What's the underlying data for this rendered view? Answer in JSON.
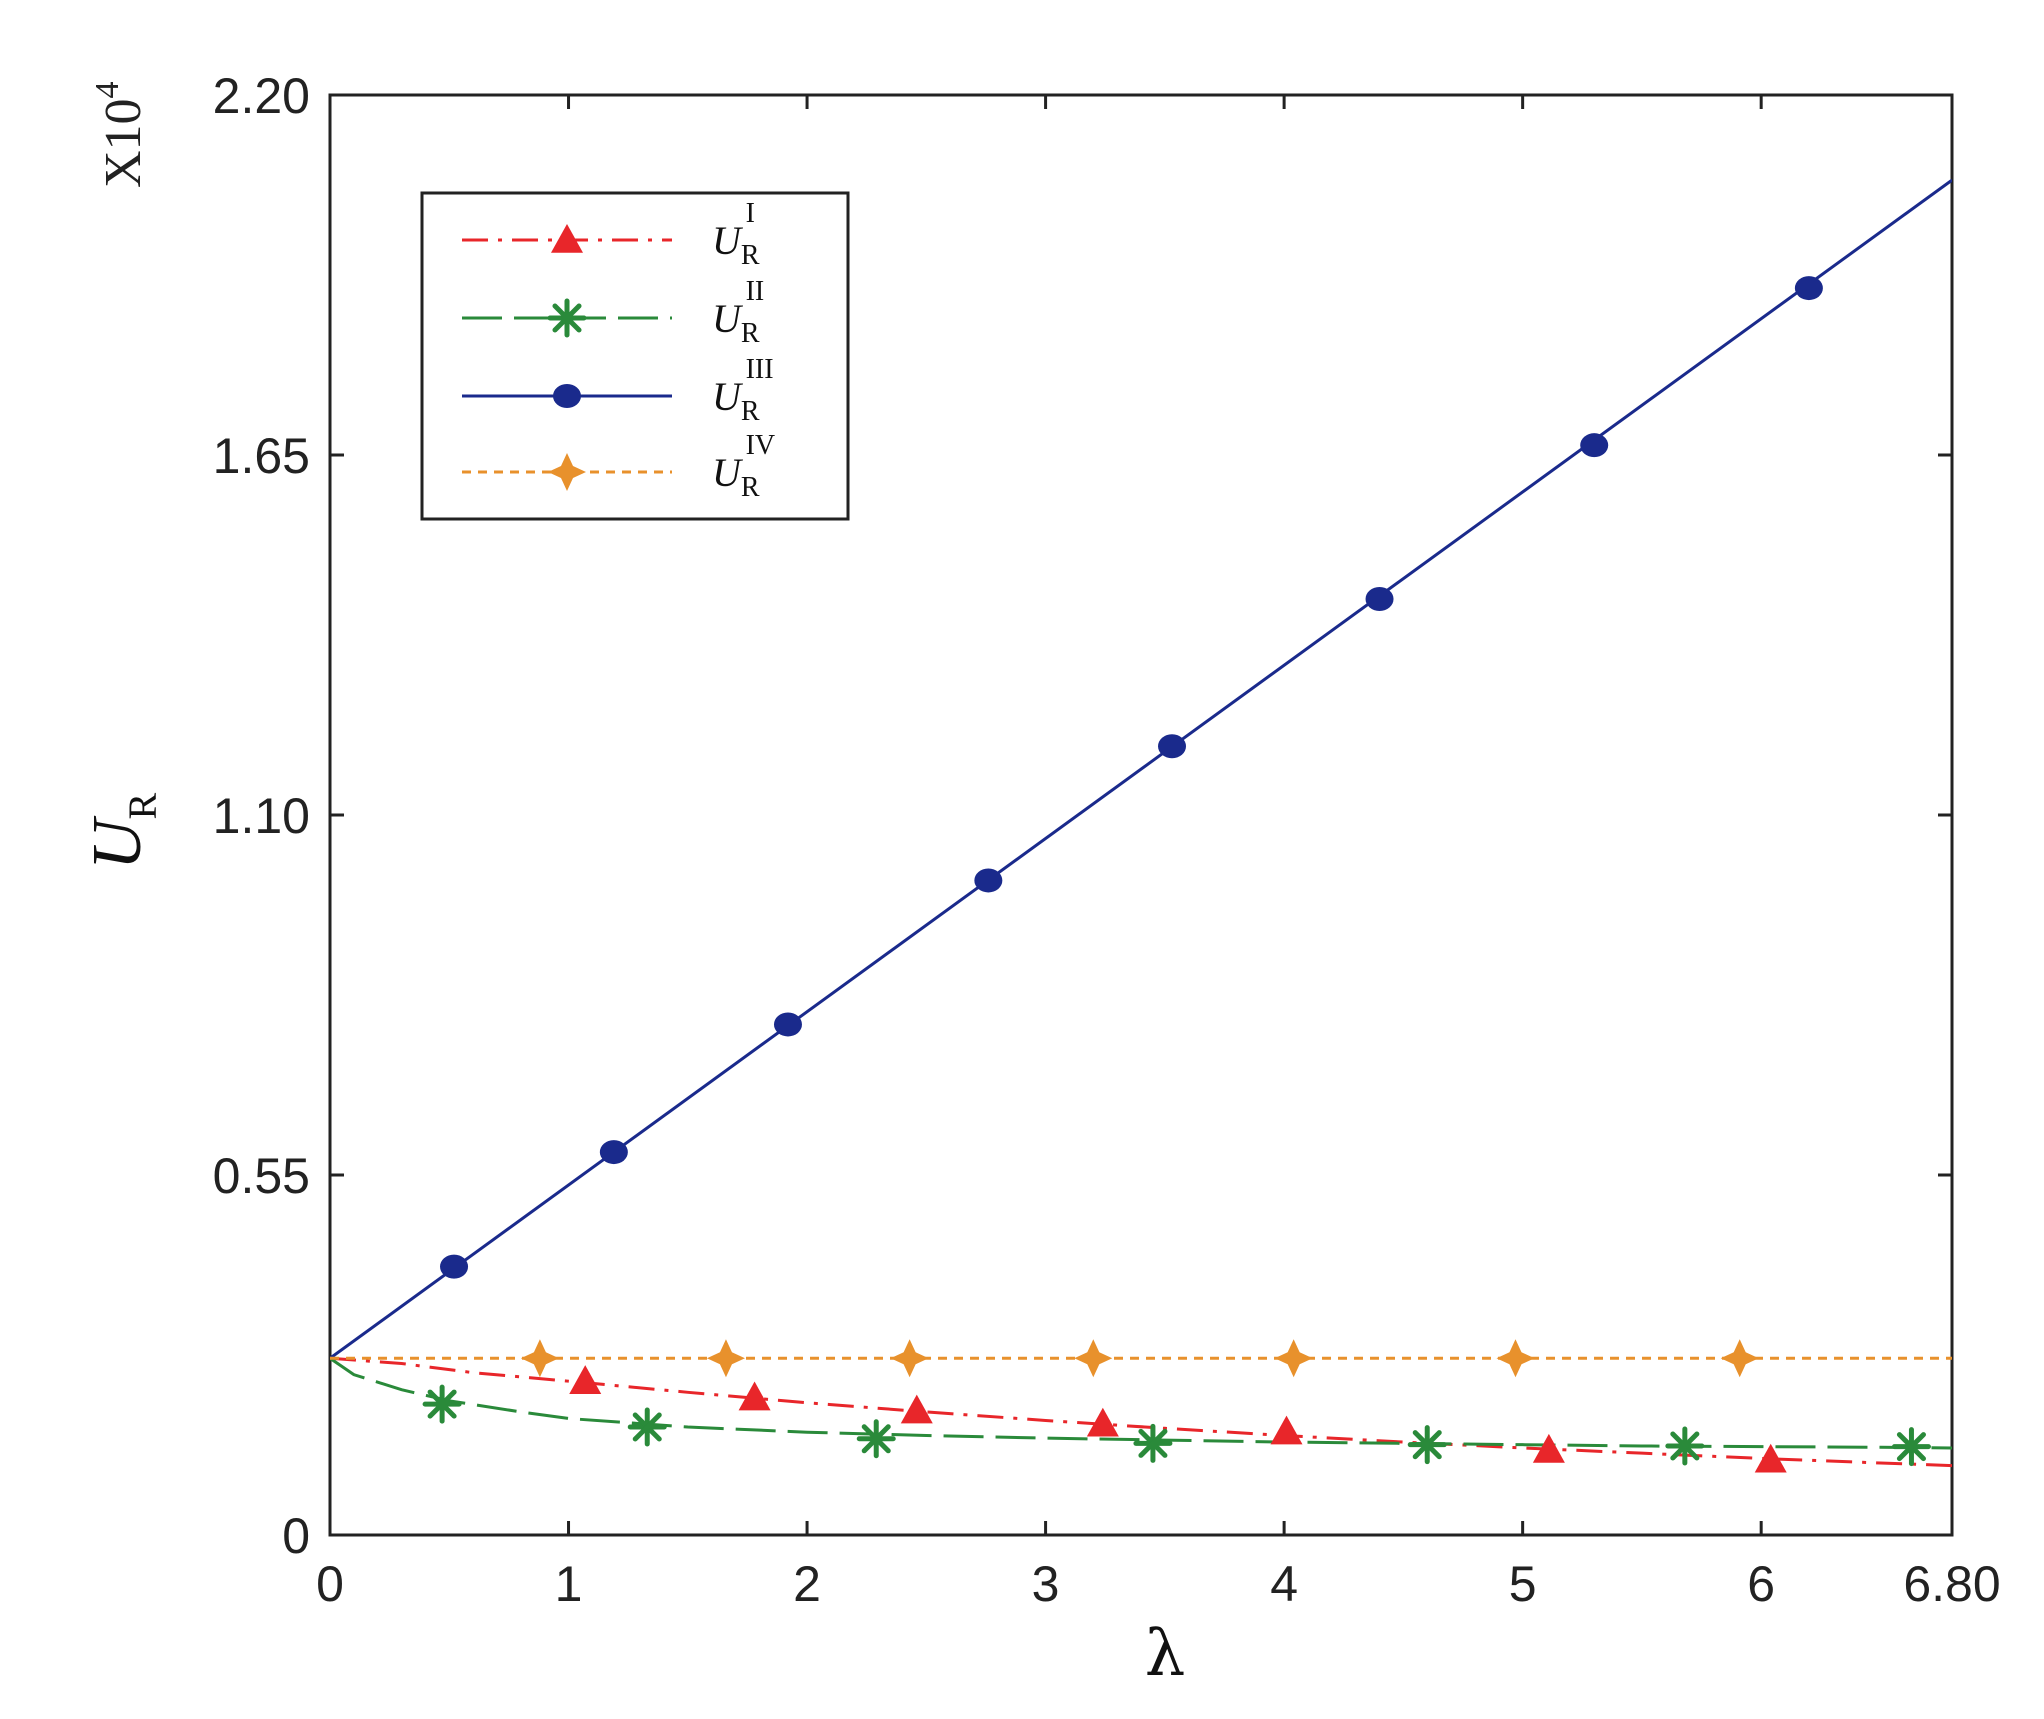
{
  "chart_data": {
    "type": "line",
    "x_label": "λ",
    "y_label": {
      "main": "U",
      "sub": "R"
    },
    "y_multiplier": {
      "base": "X10",
      "exp": "4"
    },
    "xlim": [
      0,
      6.8
    ],
    "ylim": [
      0,
      2.2
    ],
    "x_ticks": [
      0,
      1,
      2,
      3,
      4,
      5,
      6,
      6.8
    ],
    "x_tick_labels": [
      "0",
      "1",
      "2",
      "3",
      "4",
      "5",
      "6",
      "6.80"
    ],
    "y_ticks": [
      0,
      0.55,
      1.1,
      1.65,
      2.2
    ],
    "y_tick_labels": [
      "0",
      "0.55",
      "1.10",
      "1.65",
      "2.20"
    ],
    "grid": false,
    "legend_position": "top-left",
    "series": [
      {
        "name": "I",
        "label_main": "U",
        "label_sub": "R",
        "label_sup": "I",
        "color": "#e8262a",
        "line_style": "dashdot",
        "marker": "triangle",
        "x": [
          0,
          0.3,
          0.6,
          1.0,
          1.5,
          2.0,
          2.5,
          3.0,
          3.5,
          4.0,
          4.5,
          5.0,
          5.5,
          6.0,
          6.5,
          6.8
        ],
        "y": [
          0.27,
          0.262,
          0.248,
          0.235,
          0.218,
          0.202,
          0.188,
          0.175,
          0.163,
          0.152,
          0.142,
          0.133,
          0.125,
          0.117,
          0.11,
          0.106
        ],
        "marker_x": [
          1.07,
          1.78,
          2.46,
          3.24,
          4.01,
          5.11,
          6.04
        ],
        "marker_y": [
          0.235,
          0.21,
          0.19,
          0.17,
          0.158,
          0.13,
          0.115
        ]
      },
      {
        "name": "II",
        "label_main": "U",
        "label_sub": "R",
        "label_sup": "II",
        "color": "#2a8a3a",
        "line_style": "longdash",
        "marker": "star",
        "x": [
          0,
          0.1,
          0.3,
          0.5,
          0.8,
          1.0,
          1.5,
          2.0,
          2.5,
          3.0,
          3.5,
          4.0,
          4.5,
          5.0,
          5.5,
          6.0,
          6.5,
          6.8
        ],
        "y": [
          0.27,
          0.245,
          0.222,
          0.205,
          0.188,
          0.178,
          0.165,
          0.157,
          0.152,
          0.148,
          0.145,
          0.142,
          0.14,
          0.138,
          0.136,
          0.135,
          0.134,
          0.133
        ],
        "marker_x": [
          0.47,
          1.33,
          2.29,
          3.45,
          4.6,
          5.68,
          6.63
        ],
        "marker_y": [
          0.2,
          0.165,
          0.147,
          0.14,
          0.138,
          0.136,
          0.135
        ]
      },
      {
        "name": "III",
        "label_main": "U",
        "label_sub": "R",
        "label_sup": "III",
        "color": "#1a2a8c",
        "line_style": "solid",
        "marker": "circle",
        "x": [
          0,
          6.8
        ],
        "y": [
          0.27,
          2.07
        ],
        "marker_x": [
          0.52,
          1.19,
          1.92,
          2.76,
          3.53,
          4.4,
          5.3,
          6.2
        ],
        "marker_y": [
          0.41,
          0.585,
          0.78,
          1.0,
          1.205,
          1.43,
          1.665,
          1.905
        ]
      },
      {
        "name": "IV",
        "label_main": "U",
        "label_sub": "R",
        "label_sup": "IV",
        "color": "#e8912c",
        "line_style": "dashed",
        "marker": "diamond-star",
        "x": [
          0,
          6.8
        ],
        "y": [
          0.27,
          0.27
        ],
        "marker_x": [
          0.88,
          1.66,
          2.43,
          3.2,
          4.04,
          4.97,
          5.91
        ],
        "marker_y": [
          0.27,
          0.27,
          0.27,
          0.27,
          0.27,
          0.27,
          0.27
        ]
      }
    ]
  }
}
